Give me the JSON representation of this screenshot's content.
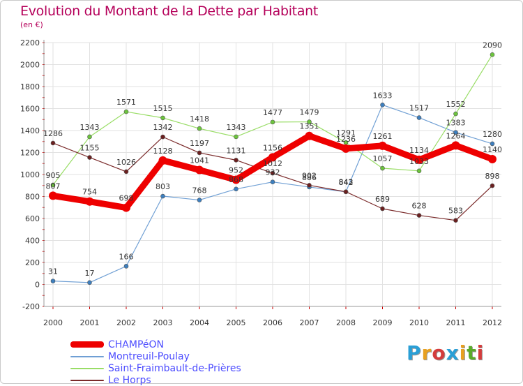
{
  "title": "Evolution du Montant de la Dette par Habitant",
  "subtitle": "(en €)",
  "logo": {
    "text": "Proxiti",
    "letter_colors": [
      "#2a9fd6",
      "#e8a020",
      "#d43c3c",
      "#2a9fd6",
      "#e8a020",
      "#5aaa2a",
      "#d43c3c"
    ]
  },
  "colors": {
    "title": "#b5005a",
    "grid": "#e2e2e2",
    "axis_text": "#333333",
    "legend_text": "#4c4cff",
    "label_text": "#333333"
  },
  "chart_data": {
    "type": "line",
    "title": "Evolution du Montant de la Dette par Habitant",
    "subtitle": "(en €)",
    "xlabel": "",
    "ylabel": "",
    "ylim": [
      -200,
      2200
    ],
    "yticks": [
      "-200",
      "0",
      "200",
      "400",
      "600",
      "800",
      "1000",
      "1200",
      "1400",
      "1600",
      "1800",
      "2000",
      "2200"
    ],
    "ytick_values": [
      -200,
      0,
      200,
      400,
      600,
      800,
      1000,
      1200,
      1400,
      1600,
      1800,
      2000,
      2200
    ],
    "categories": [
      "2000",
      "2001",
      "2002",
      "2003",
      "2004",
      "2005",
      "2006",
      "2007",
      "2008",
      "2009",
      "2010",
      "2011",
      "2012"
    ],
    "grid": true,
    "legend_position": "bottom-left",
    "series": [
      {
        "name": "Montreuil-Poulay",
        "color": "#6f9fd4",
        "marker": "#3d7fbf",
        "width": "thin",
        "values": [
          31,
          17,
          166,
          803,
          768,
          868,
          932,
          886,
          842,
          1633,
          1517,
          1383,
          1280
        ],
        "labels": [
          "31",
          "17",
          "166",
          "803",
          "768",
          "868",
          "932",
          "886",
          "842",
          "1633",
          "1517",
          "1383",
          "1280"
        ]
      },
      {
        "name": "Saint-Fraimbault-de-Prières",
        "color": "#99dd66",
        "marker": "#6cc43d",
        "width": "thin",
        "values": [
          905,
          1343,
          1571,
          1515,
          1418,
          1343,
          1477,
          1479,
          1291,
          1057,
          1033,
          1552,
          2090
        ],
        "labels": [
          "905",
          "1343",
          "1571",
          "1515",
          "1418",
          "1343",
          "1477",
          "1479",
          "1291",
          "1057",
          "1033",
          "1552",
          "2090"
        ]
      },
      {
        "name": "Le Horps",
        "color": "#7a2a2a",
        "marker": "#6b1f1f",
        "width": "thin",
        "values": [
          1286,
          1155,
          1026,
          1342,
          1197,
          1131,
          1012,
          902,
          843,
          689,
          628,
          583,
          898
        ],
        "labels": [
          "1286",
          "1155",
          "1026",
          "1342",
          "1197",
          "1131",
          "1012",
          "902",
          "843",
          "689",
          "628",
          "583",
          "898"
        ]
      },
      {
        "name": "CHAMPéON",
        "color": "#ee0000",
        "marker": "#ee0000",
        "width": "thick",
        "values": [
          807,
          754,
          698,
          1128,
          1041,
          952,
          1156,
          1351,
          1236,
          1261,
          1134,
          1264,
          1140
        ],
        "labels": [
          "807",
          "754",
          "698",
          "1128",
          "1041",
          "952",
          "1156",
          "1351",
          "1236",
          "1261",
          "1134",
          "1264",
          "1140"
        ]
      }
    ],
    "legend_order": [
      "CHAMPéON",
      "Montreuil-Poulay",
      "Saint-Fraimbault-de-Prières",
      "Le Horps"
    ]
  }
}
